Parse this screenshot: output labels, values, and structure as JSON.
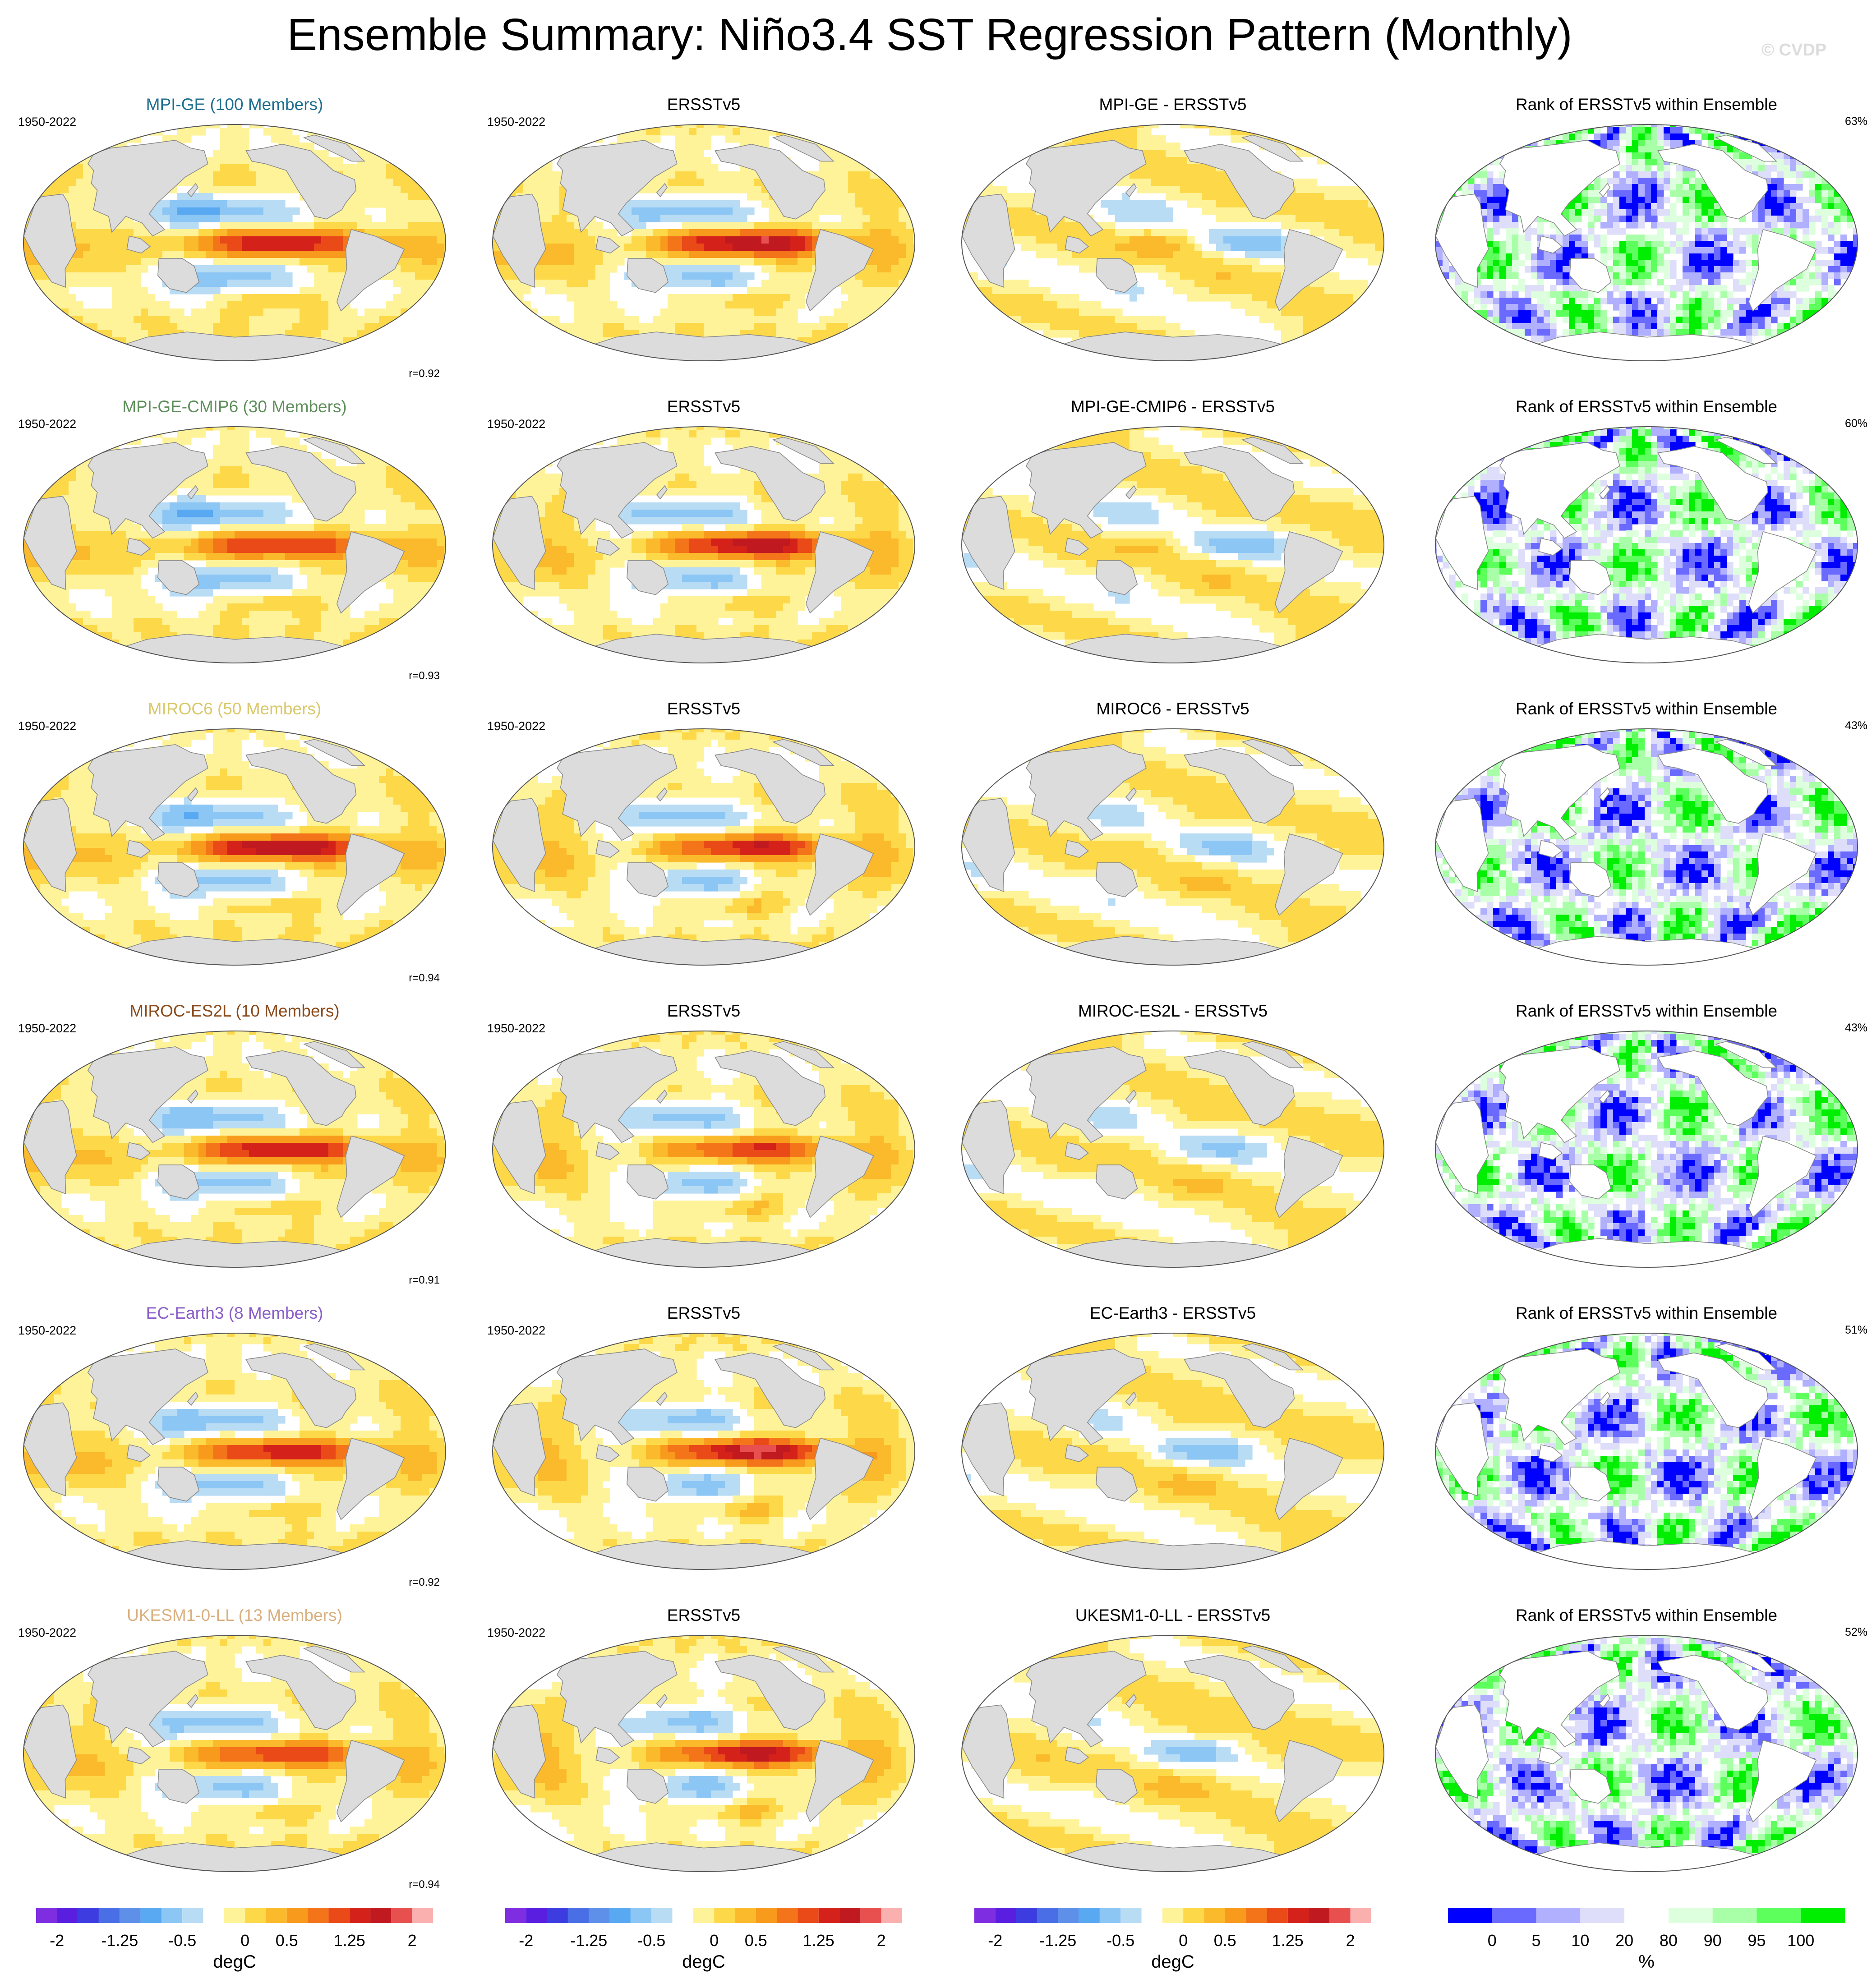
{
  "title": "Ensemble Summary: Niño3.4 SST Regression Pattern (Monthly)",
  "watermark": "© CVDP",
  "colors": {
    "land": "#dcdcdc",
    "ocean_missing": "#ffffff",
    "sst_scale": [
      "#7f2de0",
      "#5a1ee0",
      "#3c3ce0",
      "#4a6ee6",
      "#5e90ea",
      "#58a8f2",
      "#8cc6f4",
      "#b9dcf5",
      "#ffffff",
      "#fff39a",
      "#fdd94a",
      "#fbb92c",
      "#f89a1c",
      "#f4741a",
      "#e94a18",
      "#d4221a",
      "#c01a20",
      "#e85050",
      "#fbb0b0"
    ],
    "rank_scale": [
      "#0000ff",
      "#6a6aff",
      "#b0b0ff",
      "#dedefa",
      "#ffffff",
      "#ddffdd",
      "#a8ffa8",
      "#5cff5c",
      "#00ee00"
    ]
  },
  "rows": [
    {
      "model": "MPI-GE (100 Members)",
      "model_color": "#1e6e8f",
      "years": "1950-2022",
      "ersst_years": "1950-2022",
      "r": "r=0.92",
      "diff_title": "MPI-GE - ERSSTv5",
      "rank": "63%",
      "seed": 11
    },
    {
      "model": "MPI-GE-CMIP6 (30 Members)",
      "model_color": "#5e8f5a",
      "years": "1950-2022",
      "ersst_years": "1950-2022",
      "r": "r=0.93",
      "diff_title": "MPI-GE-CMIP6 - ERSSTv5",
      "rank": "60%",
      "seed": 23
    },
    {
      "model": "MIROC6 (50 Members)",
      "model_color": "#d9c86a",
      "years": "1950-2022",
      "ersst_years": "1950-2022",
      "r": "r=0.94",
      "diff_title": "MIROC6 - ERSSTv5",
      "rank": "43%",
      "seed": 37
    },
    {
      "model": "MIROC-ES2L (10 Members)",
      "model_color": "#8a4a1a",
      "years": "1950-2022",
      "ersst_years": "1950-2022",
      "r": "r=0.91",
      "diff_title": "MIROC-ES2L - ERSSTv5",
      "rank": "43%",
      "seed": 41
    },
    {
      "model": "EC-Earth3 (8 Members)",
      "model_color": "#8a5ec8",
      "years": "1950-2022",
      "ersst_years": "1950-2022",
      "r": "r=0.92",
      "diff_title": "EC-Earth3 - ERSSTv5",
      "rank": "51%",
      "seed": 53
    },
    {
      "model": "UKESM1-0-LL (13 Members)",
      "model_color": "#d9b080",
      "years": "1950-2022",
      "ersst_years": "1950-2022",
      "r": "r=0.94",
      "diff_title": "UKESM1-0-LL - ERSSTv5",
      "rank": "52%",
      "seed": 67
    }
  ],
  "obs_title": "ERSSTv5",
  "rank_title": "Rank of ERSSTv5 within Ensemble",
  "colorbar_sst": {
    "ticks": [
      "-2",
      "-1.25",
      "-0.5",
      "0",
      "0.5",
      "1.25",
      "2"
    ],
    "tick_positions": [
      0,
      3,
      6,
      9,
      11,
      14,
      17
    ],
    "label": "degC",
    "levels": 19
  },
  "colorbar_rank": {
    "ticks": [
      "0",
      "5",
      "10",
      "20",
      "80",
      "90",
      "95",
      "100"
    ],
    "tick_positions": [
      0,
      1,
      2,
      3,
      4,
      5,
      6,
      7
    ],
    "label": "%",
    "levels": 9
  }
}
